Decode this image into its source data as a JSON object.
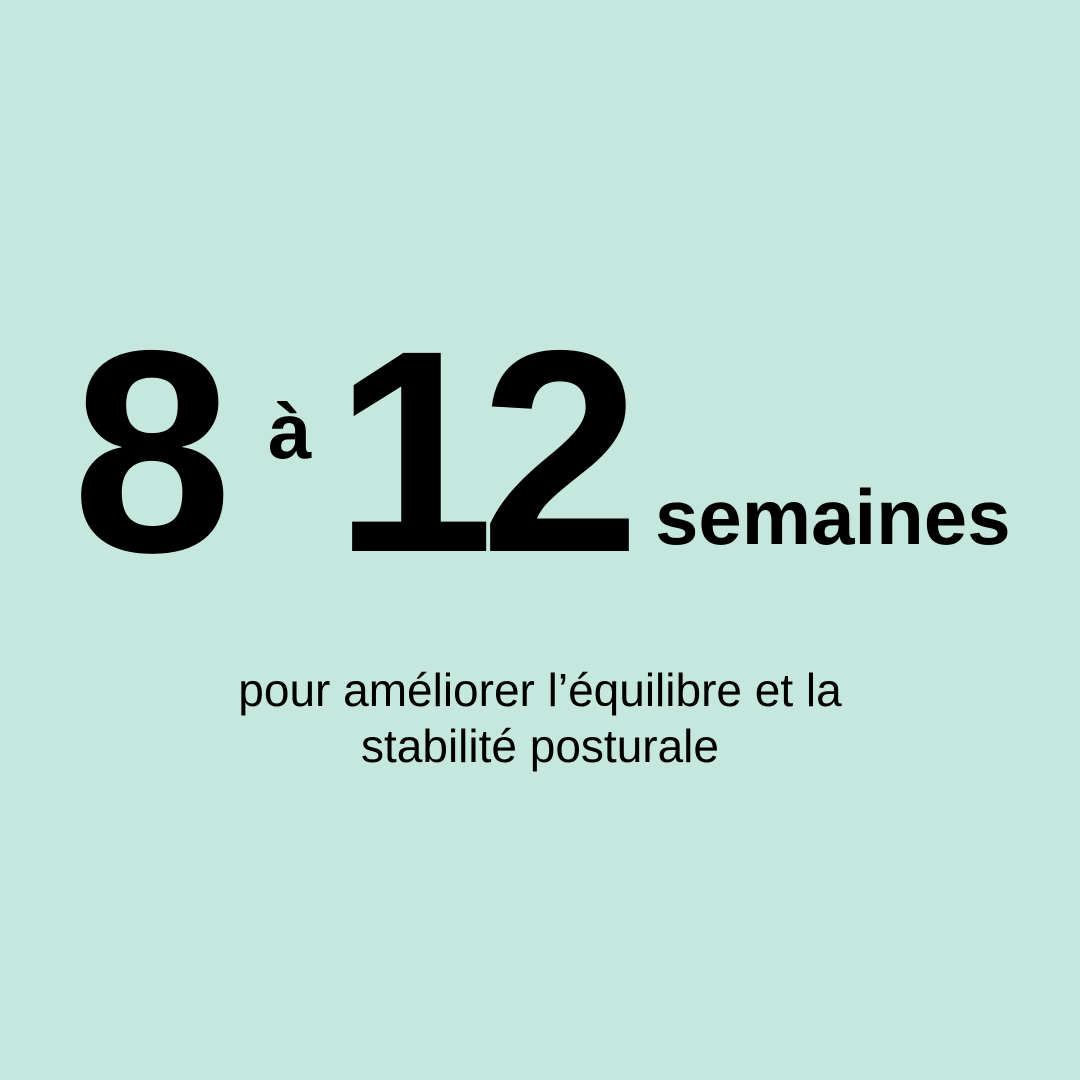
{
  "headline": {
    "from": "8",
    "connector": "à",
    "to": "12",
    "unit": "semaines"
  },
  "subtitle": {
    "line1": "pour améliorer l’équilibre et la",
    "line2": "stabilité posturale"
  },
  "colors": {
    "background": "#c5e7de",
    "text": "#000000"
  }
}
